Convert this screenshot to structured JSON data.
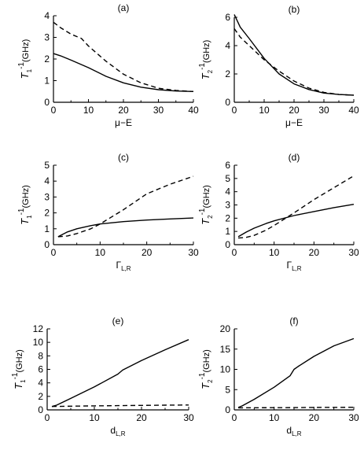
{
  "chart_data": [
    {
      "panel": "(a)",
      "type": "line",
      "xlabel": "μ−E",
      "ylabel": {
        "main": "T",
        "sub": "1",
        "sup": "-1",
        "unit": "(GHz)"
      },
      "xlim": [
        0,
        40
      ],
      "ylim": [
        0,
        4
      ],
      "xticks": [
        "0",
        "10",
        "20",
        "30",
        "40"
      ],
      "yticks": [
        "0",
        "1",
        "2",
        "3",
        "4"
      ],
      "series": [
        {
          "style": "solid",
          "x": [
            0,
            2,
            5,
            10,
            15,
            20,
            25,
            30,
            35,
            40
          ],
          "y": [
            2.25,
            2.15,
            1.95,
            1.6,
            1.2,
            0.9,
            0.7,
            0.58,
            0.52,
            0.5
          ]
        },
        {
          "style": "dashed",
          "x": [
            0,
            2,
            5,
            8,
            10,
            15,
            20,
            25,
            30,
            35,
            40
          ],
          "y": [
            3.7,
            3.45,
            3.15,
            2.95,
            2.6,
            1.9,
            1.3,
            0.9,
            0.65,
            0.55,
            0.5
          ]
        }
      ]
    },
    {
      "panel": "(b)",
      "type": "line",
      "xlabel": "μ−E",
      "ylabel": {
        "main": "T",
        "sub": "2",
        "sup": "-1",
        "unit": "(GHz)"
      },
      "xlim": [
        0,
        40
      ],
      "ylim": [
        0,
        6
      ],
      "xticks": [
        "0",
        "10",
        "20",
        "30",
        "40"
      ],
      "yticks": [
        "0",
        "2",
        "4",
        "6"
      ],
      "series": [
        {
          "style": "solid",
          "x": [
            0,
            2,
            5,
            10,
            15,
            20,
            25,
            30,
            35,
            40
          ],
          "y": [
            6.2,
            5.3,
            4.5,
            3.1,
            2.0,
            1.3,
            0.9,
            0.65,
            0.55,
            0.5
          ]
        },
        {
          "style": "dashed",
          "x": [
            0,
            2,
            5,
            10,
            15,
            20,
            25,
            30,
            35,
            40
          ],
          "y": [
            5.2,
            4.6,
            4.0,
            3.0,
            2.2,
            1.5,
            1.0,
            0.7,
            0.55,
            0.5
          ]
        }
      ]
    },
    {
      "panel": "(c)",
      "type": "line",
      "xlabel": "Γ",
      "xlabel_sub": "L,R",
      "ylabel": {
        "main": "T",
        "sub": "1",
        "sup": "-1",
        "unit": "(GHz)"
      },
      "xlim": [
        0,
        30
      ],
      "ylim": [
        0,
        5
      ],
      "xticks": [
        "0",
        "10",
        "20",
        "30"
      ],
      "yticks": [
        "0",
        "1",
        "2",
        "3",
        "4",
        "5"
      ],
      "series": [
        {
          "style": "solid",
          "x": [
            1,
            3,
            5,
            8,
            10,
            15,
            20,
            25,
            30
          ],
          "y": [
            0.5,
            0.8,
            1.0,
            1.2,
            1.3,
            1.45,
            1.55,
            1.62,
            1.68
          ]
        },
        {
          "style": "dashed",
          "x": [
            1,
            3,
            5,
            8,
            10,
            15,
            20,
            25,
            30
          ],
          "y": [
            0.5,
            0.55,
            0.7,
            1.0,
            1.3,
            2.2,
            3.2,
            3.8,
            4.3
          ]
        }
      ]
    },
    {
      "panel": "(d)",
      "type": "line",
      "xlabel": "Γ",
      "xlabel_sub": "L,R",
      "ylabel": {
        "main": "T",
        "sub": "2",
        "sup": "-1",
        "unit": "(GHz)"
      },
      "xlim": [
        0,
        30
      ],
      "ylim": [
        0,
        6
      ],
      "xticks": [
        "0",
        "10",
        "20",
        "30"
      ],
      "yticks": [
        "0",
        "1",
        "2",
        "3",
        "4",
        "5",
        "6"
      ],
      "series": [
        {
          "style": "solid",
          "x": [
            1,
            3,
            5,
            8,
            10,
            15,
            20,
            25,
            30
          ],
          "y": [
            0.6,
            0.95,
            1.25,
            1.6,
            1.8,
            2.2,
            2.5,
            2.8,
            3.05
          ]
        },
        {
          "style": "dashed",
          "x": [
            1,
            3,
            5,
            8,
            10,
            15,
            20,
            25,
            30
          ],
          "y": [
            0.5,
            0.55,
            0.7,
            1.1,
            1.45,
            2.4,
            3.4,
            4.3,
            5.2
          ]
        }
      ]
    },
    {
      "panel": "(e)",
      "type": "line",
      "xlabel": "d",
      "xlabel_sub": "L,R",
      "ylabel": {
        "main": "T",
        "sub": "1",
        "sup": "-1",
        "unit": "(GHz)"
      },
      "xlim": [
        0,
        30
      ],
      "ylim": [
        0,
        12
      ],
      "xticks": [
        "0",
        "10",
        "20",
        "30"
      ],
      "yticks": [
        "0",
        "2",
        "4",
        "6",
        "8",
        "10",
        "12"
      ],
      "series": [
        {
          "style": "solid",
          "x": [
            1,
            2,
            5,
            10,
            15,
            16,
            20,
            25,
            30
          ],
          "y": [
            0.5,
            0.7,
            1.7,
            3.4,
            5.3,
            5.9,
            7.3,
            8.9,
            10.4
          ]
        },
        {
          "style": "dashed",
          "x": [
            1,
            5,
            10,
            15,
            20,
            25,
            30
          ],
          "y": [
            0.5,
            0.55,
            0.6,
            0.63,
            0.66,
            0.7,
            0.72
          ]
        }
      ]
    },
    {
      "panel": "(f)",
      "type": "line",
      "xlabel": "d",
      "xlabel_sub": "L,R",
      "ylabel": {
        "main": "T",
        "sub": "2",
        "sup": "-1",
        "unit": "(GHz)"
      },
      "xlim": [
        0,
        30
      ],
      "ylim": [
        0,
        20
      ],
      "xticks": [
        "0",
        "10",
        "20",
        "30"
      ],
      "yticks": [
        "0",
        "5",
        "10",
        "15",
        "20"
      ],
      "series": [
        {
          "style": "solid",
          "x": [
            1,
            2,
            5,
            10,
            14,
            15,
            16,
            20,
            25,
            30
          ],
          "y": [
            0.6,
            1.0,
            2.6,
            5.6,
            8.4,
            10.0,
            10.7,
            13.2,
            15.8,
            17.6
          ]
        },
        {
          "style": "dashed",
          "x": [
            1,
            5,
            10,
            15,
            20,
            25,
            30
          ],
          "y": [
            0.5,
            0.52,
            0.55,
            0.57,
            0.6,
            0.62,
            0.65
          ]
        }
      ]
    }
  ]
}
